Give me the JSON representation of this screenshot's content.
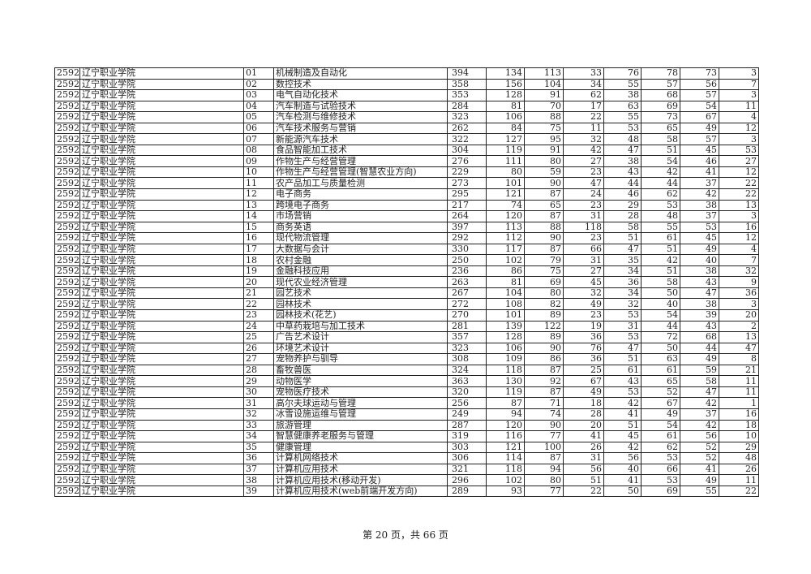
{
  "school_code": "2592",
  "school_name": "辽宁职业学院",
  "rows": [
    [
      "01",
      "机械制造及自动化",
      394,
      134,
      113,
      33,
      76,
      78,
      73,
      3
    ],
    [
      "02",
      "数控技术",
      358,
      156,
      104,
      34,
      55,
      57,
      56,
      7
    ],
    [
      "03",
      "电气自动化技术",
      353,
      128,
      91,
      62,
      38,
      68,
      57,
      3
    ],
    [
      "04",
      "汽车制造与试验技术",
      284,
      81,
      70,
      17,
      63,
      69,
      54,
      11
    ],
    [
      "05",
      "汽车检测与维修技术",
      323,
      106,
      88,
      22,
      55,
      73,
      67,
      4
    ],
    [
      "06",
      "汽车技术服务与营销",
      262,
      84,
      75,
      11,
      53,
      65,
      49,
      12
    ],
    [
      "07",
      "新能源汽车技术",
      322,
      127,
      95,
      32,
      48,
      58,
      57,
      3
    ],
    [
      "08",
      "食品智能加工技术",
      304,
      119,
      91,
      42,
      47,
      51,
      45,
      53
    ],
    [
      "09",
      "作物生产与经营管理",
      276,
      111,
      80,
      27,
      38,
      54,
      46,
      27
    ],
    [
      "10",
      "作物生产与经营管理(智慧农业方向)",
      229,
      80,
      59,
      23,
      43,
      42,
      41,
      12
    ],
    [
      "11",
      "农产品加工与质量检测",
      273,
      101,
      90,
      47,
      44,
      44,
      37,
      22
    ],
    [
      "12",
      "电子商务",
      295,
      121,
      87,
      24,
      46,
      62,
      42,
      22
    ],
    [
      "13",
      "跨境电子商务",
      217,
      74,
      65,
      23,
      29,
      53,
      38,
      13
    ],
    [
      "14",
      "市场营销",
      264,
      120,
      87,
      31,
      28,
      48,
      37,
      3
    ],
    [
      "15",
      "商务英语",
      397,
      113,
      88,
      118,
      58,
      55,
      53,
      16
    ],
    [
      "16",
      "现代物流管理",
      292,
      112,
      90,
      23,
      51,
      61,
      45,
      12
    ],
    [
      "17",
      "大数据与会计",
      330,
      117,
      87,
      66,
      47,
      51,
      49,
      4
    ],
    [
      "18",
      "农村金融",
      250,
      102,
      79,
      31,
      35,
      42,
      40,
      7
    ],
    [
      "19",
      "金融科技应用",
      236,
      86,
      75,
      27,
      34,
      51,
      38,
      32
    ],
    [
      "20",
      "现代农业经济管理",
      263,
      81,
      69,
      45,
      36,
      58,
      43,
      9
    ],
    [
      "21",
      "园艺技术",
      267,
      104,
      80,
      32,
      34,
      50,
      47,
      36
    ],
    [
      "22",
      "园林技术",
      272,
      108,
      82,
      49,
      32,
      40,
      38,
      3
    ],
    [
      "23",
      "园林技术(花艺)",
      270,
      101,
      89,
      23,
      53,
      54,
      39,
      20
    ],
    [
      "24",
      "中草药栽培与加工技术",
      281,
      139,
      122,
      19,
      31,
      44,
      43,
      2
    ],
    [
      "25",
      "广告艺术设计",
      357,
      128,
      89,
      36,
      53,
      72,
      68,
      13
    ],
    [
      "26",
      "环境艺术设计",
      323,
      106,
      90,
      76,
      47,
      50,
      44,
      47
    ],
    [
      "27",
      "宠物养护与驯导",
      308,
      109,
      86,
      36,
      51,
      63,
      49,
      8
    ],
    [
      "28",
      "畜牧兽医",
      324,
      118,
      87,
      25,
      61,
      61,
      59,
      21
    ],
    [
      "29",
      "动物医学",
      363,
      130,
      92,
      67,
      43,
      65,
      58,
      11
    ],
    [
      "30",
      "宠物医疗技术",
      320,
      119,
      87,
      49,
      53,
      52,
      47,
      11
    ],
    [
      "31",
      "高尔夫球运动与管理",
      256,
      87,
      71,
      18,
      42,
      67,
      42,
      1
    ],
    [
      "32",
      "冰雪设施运维与管理",
      249,
      94,
      74,
      28,
      41,
      49,
      37,
      16
    ],
    [
      "33",
      "旅游管理",
      287,
      120,
      90,
      20,
      51,
      54,
      42,
      18
    ],
    [
      "34",
      "智慧健康养老服务与管理",
      319,
      116,
      77,
      41,
      45,
      61,
      56,
      10
    ],
    [
      "35",
      "健康管理",
      303,
      121,
      100,
      26,
      42,
      62,
      52,
      29
    ],
    [
      "36",
      "计算机网络技术",
      306,
      114,
      87,
      31,
      56,
      53,
      52,
      48
    ],
    [
      "37",
      "计算机应用技术",
      321,
      118,
      94,
      56,
      40,
      66,
      41,
      26
    ],
    [
      "38",
      "计算机应用技术(移动开发)",
      296,
      102,
      80,
      51,
      41,
      53,
      49,
      11
    ],
    [
      "39",
      "计算机应用技术(web前端开发方向)",
      289,
      93,
      77,
      22,
      50,
      69,
      55,
      22
    ]
  ],
  "footer": "第 20 页，共 66 页"
}
